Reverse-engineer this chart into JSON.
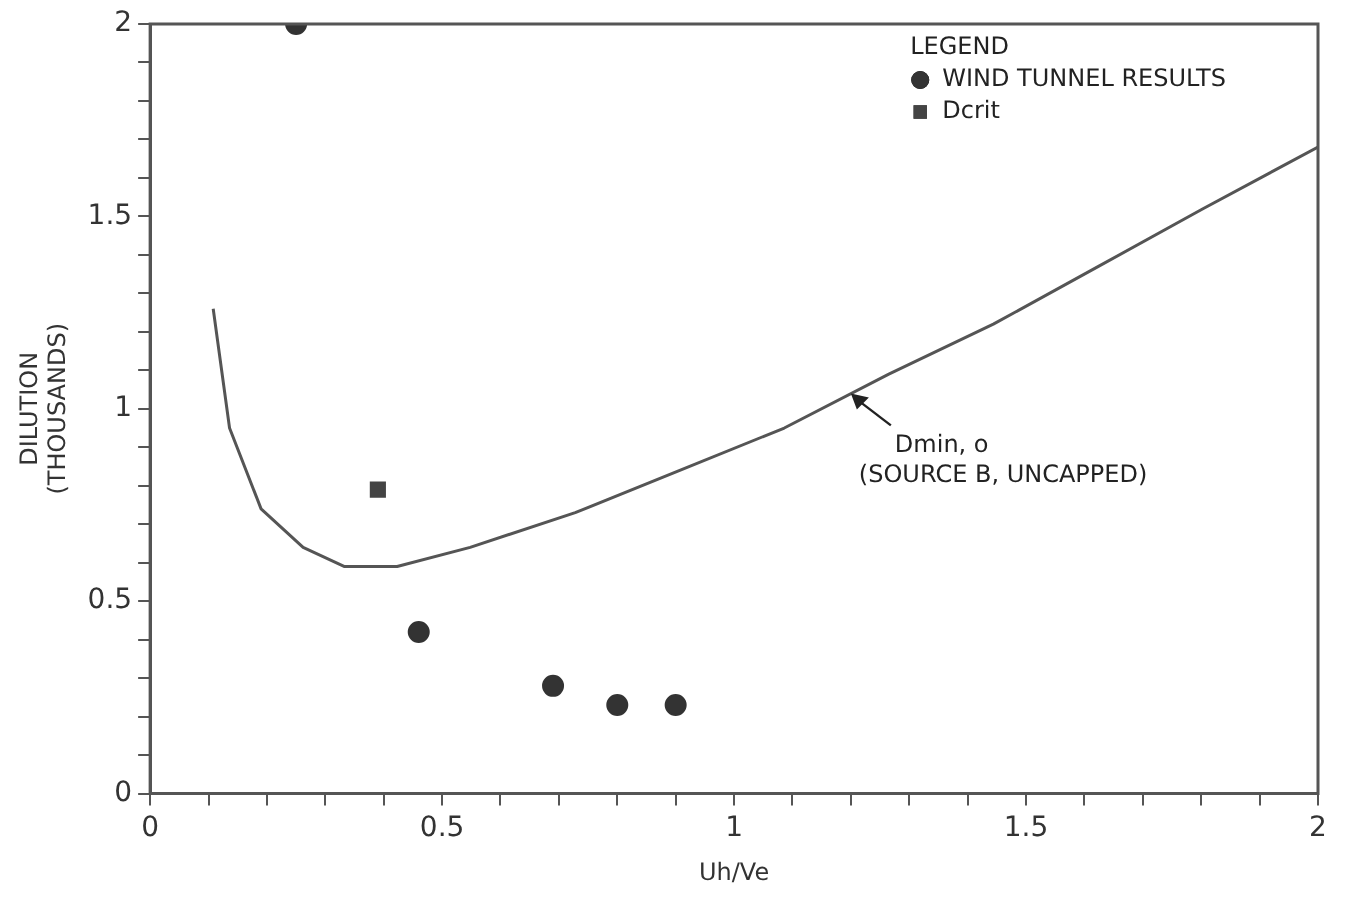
{
  "chart_data": {
    "type": "line",
    "xlabel": "Uh/Ve",
    "ylabel": "DILUTION\n(THOUSANDS)",
    "legend_title": "LEGEND",
    "legend": "top right",
    "grid": false,
    "xlim": [
      0,
      2
    ],
    "ylim": [
      0,
      2
    ],
    "xticks": [
      0,
      {
        "value": 0.1,
        "label": null
      },
      {
        "value": 0.2,
        "label": null
      },
      {
        "value": 0.3,
        "label": null
      },
      {
        "value": 0.4,
        "label": null
      },
      0.5,
      {
        "value": 0.6,
        "label": null
      },
      {
        "value": 0.7,
        "label": null
      },
      {
        "value": 0.8,
        "label": null
      },
      {
        "value": 0.9,
        "label": null
      },
      1,
      {
        "value": 1.1,
        "label": null
      },
      {
        "value": 1.2,
        "label": null
      },
      {
        "value": 1.3,
        "label": null
      },
      {
        "value": 1.4,
        "label": null
      },
      1.5,
      {
        "value": 1.6,
        "label": null
      },
      {
        "value": 1.7,
        "label": null
      },
      {
        "value": 1.8,
        "label": null
      },
      {
        "value": 1.9,
        "label": null
      },
      2
    ],
    "yticks": [
      0,
      {
        "value": 0.1,
        "label": null
      },
      {
        "value": 0.2,
        "label": null
      },
      {
        "value": 0.3,
        "label": null
      },
      {
        "value": 0.4,
        "label": null
      },
      0.5,
      {
        "value": 0.6,
        "label": null
      },
      {
        "value": 0.7,
        "label": null
      },
      {
        "value": 0.8,
        "label": null
      },
      {
        "value": 0.9,
        "label": null
      },
      1,
      {
        "value": 1.1,
        "label": null
      },
      {
        "value": 1.2,
        "label": null
      },
      {
        "value": 1.3,
        "label": null
      },
      {
        "value": 1.4,
        "label": null
      },
      1.5,
      {
        "value": 1.6,
        "label": null
      },
      {
        "value": 1.7,
        "label": null
      },
      {
        "value": 1.8,
        "label": null
      },
      {
        "value": 1.9,
        "label": null
      },
      2
    ],
    "series": [
      {
        "type": "line",
        "color": "#555555",
        "marker": "none",
        "line_style": "solid",
        "x": [
          0.108,
          0.136,
          0.19,
          0.262,
          0.333,
          0.423,
          0.548,
          0.728,
          0.907,
          1.086,
          1.265,
          1.444,
          1.624,
          1.803,
          2.0
        ],
        "values": [
          1.26,
          0.95,
          0.74,
          0.64,
          0.59,
          0.59,
          0.64,
          0.73,
          0.84,
          0.95,
          1.09,
          1.22,
          1.37,
          1.52,
          1.68
        ]
      },
      {
        "type": "scatter",
        "name": "WIND TUNNEL RESULTS",
        "color": "#333333",
        "marker": "circle",
        "x": [
          0.25,
          0.46,
          0.69,
          0.8,
          0.9
        ],
        "values": [
          2.0,
          0.42,
          0.28,
          0.23,
          0.23
        ]
      },
      {
        "type": "scatter",
        "name": "Dcrit",
        "color": "#444444",
        "marker": "square",
        "x": [
          0.39
        ],
        "values": [
          0.79
        ]
      }
    ],
    "annotations": [
      {
        "text": "Dmin, o\n(SOURCE B, UNCAPPED)",
        "x": 1.2,
        "y": 1.04
      }
    ]
  }
}
